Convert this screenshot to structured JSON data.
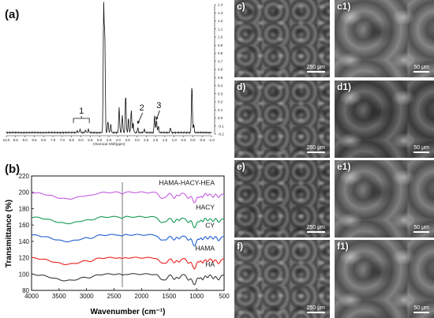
{
  "panel_a": {
    "label": "(a)",
    "xaxis_title": "Chemical Shift(ppm)",
    "x_ticks": [
      "10.0",
      "9.5",
      "9.0",
      "8.5",
      "8.0",
      "7.5",
      "7.0",
      "6.5",
      "6.0",
      "5.5",
      "5.0",
      "4.5",
      "4.0",
      "3.5",
      "3.0",
      "2.5",
      "2.0",
      "1.5",
      "1.0",
      "0.5",
      "0.0",
      "-0.5",
      "-1.0"
    ],
    "y_ticks": [
      "1.4",
      "1.3",
      "1.2",
      "1.1",
      "1.0",
      "0.9",
      "0.8",
      "0.7",
      "0.6",
      "0.5",
      "0.4",
      "0.3",
      "0.2",
      "0.1",
      "0.0",
      "-0.1",
      "-0.2"
    ],
    "annotations": [
      "1",
      "2",
      "3"
    ]
  },
  "panel_b": {
    "label": "(b)"
  },
  "chart_data": {
    "type": "line",
    "xlabel": "Wavenumber (cm⁻¹)",
    "ylabel": "Transmittance (%)",
    "xlim": [
      4000,
      500
    ],
    "ylim": [
      80,
      220
    ],
    "x_ticks": [
      "4000",
      "3500",
      "3000",
      "2500",
      "2000",
      "1500",
      "1000",
      "500"
    ],
    "y_ticks": [
      "80",
      "100",
      "120",
      "140",
      "160",
      "180",
      "200",
      "220"
    ],
    "series": [
      {
        "name": "HA",
        "color": "#3a3a3a",
        "offset": 100
      },
      {
        "name": "HAMA",
        "color": "#e8231f",
        "offset": 120
      },
      {
        "name": "CY",
        "color": "#1f5fd0",
        "offset": 148
      },
      {
        "name": "HACY",
        "color": "#159a55",
        "offset": 170
      },
      {
        "name": "HAMA-HACY-HEA",
        "color": "#c45ee0",
        "offset": 200
      }
    ]
  },
  "sem_panels": [
    {
      "label": "c)",
      "scale": "250 μm",
      "tone": "#5b5b5b"
    },
    {
      "label": "c1)",
      "scale": "50 μm",
      "tone": "#6e6e6e"
    },
    {
      "label": "d)",
      "scale": "250 μm",
      "tone": "#585858"
    },
    {
      "label": "d1)",
      "scale": "50 μm",
      "tone": "#4d4d4d"
    },
    {
      "label": "e)",
      "scale": "250 μm",
      "tone": "#525252"
    },
    {
      "label": "e1)",
      "scale": "50 μm",
      "tone": "#676767"
    },
    {
      "label": "f)",
      "scale": "250 μm",
      "tone": "#5f5f5f"
    },
    {
      "label": "f1)",
      "scale": "50 μm",
      "tone": "#6a6a6a"
    }
  ]
}
